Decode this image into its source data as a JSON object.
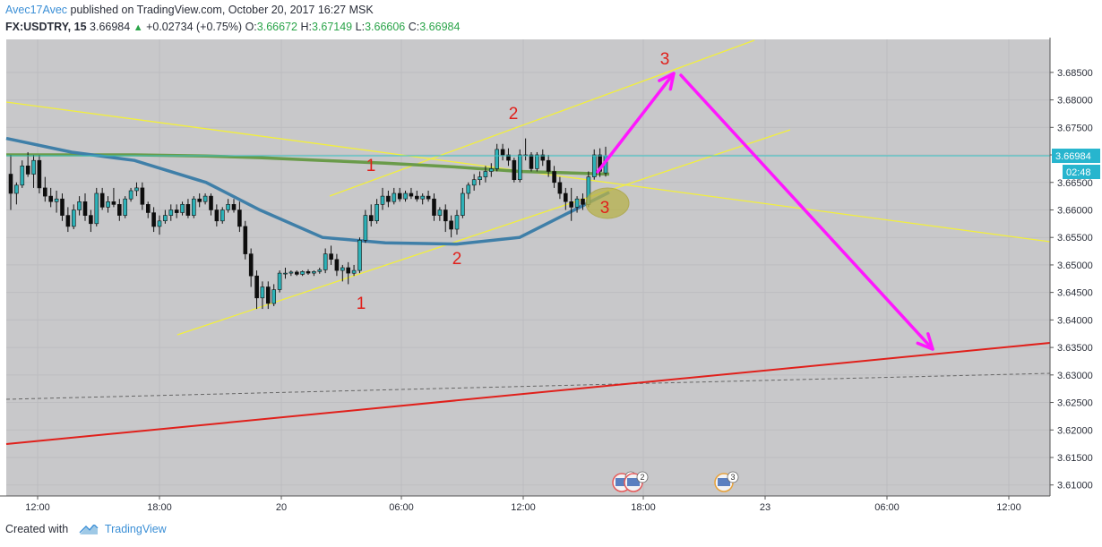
{
  "header": {
    "author": "Avec17Avec",
    "published_text": "published on TradingView.com, October 20, 2017 16:27 MSK",
    "symbol": "FX:USDTRY, 15",
    "last": "3.66984",
    "change": "+0.02734 (+0.75%)",
    "open_label": "O:",
    "open": "3.66672",
    "high_label": "H:",
    "high": "3.67149",
    "low_label": "L:",
    "low": "3.66606",
    "close_label": "C:",
    "close": "3.66984"
  },
  "footer": {
    "created_with": "Created with",
    "brand": "TradingView"
  },
  "colors": {
    "bg": "#c8c8ca",
    "candle_up": "#2db1b7",
    "candle_down": "#0d0d0d",
    "ema_green": "#6a9b4a",
    "ema_blue": "#3f7fa8",
    "trend_yellow": "#f2ef3d",
    "support_red": "#e0201b",
    "projection_magenta": "#ff17ff",
    "wave_labels": "#e0201b",
    "price_line": "#39c6c8",
    "price_label_bg": "#27b5ce"
  },
  "chart_data": {
    "type": "candlestick",
    "symbol": "FX:USDTRY",
    "timeframe": "15",
    "y_ticks": [
      "3.68500",
      "3.68000",
      "3.67500",
      "3.67000",
      "3.66500",
      "3.66000",
      "3.65500",
      "3.65000",
      "3.64500",
      "3.64000",
      "3.63500",
      "3.63000",
      "3.62500",
      "3.62000",
      "3.61500",
      "3.61000"
    ],
    "ylim": [
      3.608,
      3.691
    ],
    "x_ticks": [
      "12:00",
      "18:00",
      "20",
      "06:00",
      "12:00",
      "18:00",
      "23",
      "06:00",
      "12:00"
    ],
    "last_price": "3.66984",
    "countdown": "02:48",
    "candles": [
      {
        "o": 3.6665,
        "h": 3.67,
        "l": 3.66,
        "c": 3.663
      },
      {
        "o": 3.663,
        "h": 3.665,
        "l": 3.661,
        "c": 3.6645
      },
      {
        "o": 3.6645,
        "h": 3.669,
        "l": 3.664,
        "c": 3.668
      },
      {
        "o": 3.668,
        "h": 3.6705,
        "l": 3.666,
        "c": 3.6665
      },
      {
        "o": 3.6665,
        "h": 3.67,
        "l": 3.664,
        "c": 3.669
      },
      {
        "o": 3.669,
        "h": 3.67,
        "l": 3.663,
        "c": 3.664
      },
      {
        "o": 3.664,
        "h": 3.666,
        "l": 3.6615,
        "c": 3.6625
      },
      {
        "o": 3.6625,
        "h": 3.664,
        "l": 3.6605,
        "c": 3.6615
      },
      {
        "o": 3.6615,
        "h": 3.6635,
        "l": 3.6595,
        "c": 3.662
      },
      {
        "o": 3.662,
        "h": 3.663,
        "l": 3.658,
        "c": 3.659
      },
      {
        "o": 3.659,
        "h": 3.6605,
        "l": 3.656,
        "c": 3.657
      },
      {
        "o": 3.657,
        "h": 3.661,
        "l": 3.6565,
        "c": 3.66
      },
      {
        "o": 3.66,
        "h": 3.6625,
        "l": 3.659,
        "c": 3.6615
      },
      {
        "o": 3.6615,
        "h": 3.663,
        "l": 3.658,
        "c": 3.659
      },
      {
        "o": 3.659,
        "h": 3.66,
        "l": 3.656,
        "c": 3.6575
      },
      {
        "o": 3.6575,
        "h": 3.664,
        "l": 3.657,
        "c": 3.663
      },
      {
        "o": 3.663,
        "h": 3.664,
        "l": 3.66,
        "c": 3.6605
      },
      {
        "o": 3.6605,
        "h": 3.6625,
        "l": 3.6595,
        "c": 3.6615
      },
      {
        "o": 3.6615,
        "h": 3.664,
        "l": 3.6605,
        "c": 3.661
      },
      {
        "o": 3.661,
        "h": 3.662,
        "l": 3.658,
        "c": 3.659
      },
      {
        "o": 3.659,
        "h": 3.6625,
        "l": 3.6585,
        "c": 3.662
      },
      {
        "o": 3.662,
        "h": 3.664,
        "l": 3.6615,
        "c": 3.6635
      },
      {
        "o": 3.6635,
        "h": 3.665,
        "l": 3.6625,
        "c": 3.664
      },
      {
        "o": 3.664,
        "h": 3.665,
        "l": 3.66,
        "c": 3.661
      },
      {
        "o": 3.661,
        "h": 3.6615,
        "l": 3.6585,
        "c": 3.6595
      },
      {
        "o": 3.6595,
        "h": 3.6605,
        "l": 3.656,
        "c": 3.657
      },
      {
        "o": 3.657,
        "h": 3.659,
        "l": 3.6555,
        "c": 3.658
      },
      {
        "o": 3.658,
        "h": 3.66,
        "l": 3.6575,
        "c": 3.659
      },
      {
        "o": 3.659,
        "h": 3.661,
        "l": 3.658,
        "c": 3.66
      },
      {
        "o": 3.66,
        "h": 3.661,
        "l": 3.6585,
        "c": 3.6595
      },
      {
        "o": 3.6595,
        "h": 3.6615,
        "l": 3.659,
        "c": 3.661
      },
      {
        "o": 3.661,
        "h": 3.662,
        "l": 3.6585,
        "c": 3.659
      },
      {
        "o": 3.659,
        "h": 3.6625,
        "l": 3.6585,
        "c": 3.662
      },
      {
        "o": 3.662,
        "h": 3.663,
        "l": 3.6605,
        "c": 3.6615
      },
      {
        "o": 3.6615,
        "h": 3.663,
        "l": 3.661,
        "c": 3.6625
      },
      {
        "o": 3.6625,
        "h": 3.663,
        "l": 3.659,
        "c": 3.66
      },
      {
        "o": 3.66,
        "h": 3.661,
        "l": 3.657,
        "c": 3.658
      },
      {
        "o": 3.658,
        "h": 3.6605,
        "l": 3.6575,
        "c": 3.66
      },
      {
        "o": 3.66,
        "h": 3.662,
        "l": 3.6595,
        "c": 3.661
      },
      {
        "o": 3.661,
        "h": 3.662,
        "l": 3.6595,
        "c": 3.66
      },
      {
        "o": 3.66,
        "h": 3.6615,
        "l": 3.656,
        "c": 3.657
      },
      {
        "o": 3.657,
        "h": 3.658,
        "l": 3.651,
        "c": 3.652
      },
      {
        "o": 3.652,
        "h": 3.653,
        "l": 3.646,
        "c": 3.648
      },
      {
        "o": 3.648,
        "h": 3.649,
        "l": 3.642,
        "c": 3.644
      },
      {
        "o": 3.644,
        "h": 3.647,
        "l": 3.642,
        "c": 3.646
      },
      {
        "o": 3.646,
        "h": 3.647,
        "l": 3.642,
        "c": 3.643
      },
      {
        "o": 3.643,
        "h": 3.6465,
        "l": 3.6425,
        "c": 3.6455
      },
      {
        "o": 3.6455,
        "h": 3.649,
        "l": 3.645,
        "c": 3.6485
      },
      {
        "o": 3.6485,
        "h": 3.6495,
        "l": 3.6475,
        "c": 3.6485
      },
      {
        "o": 3.6485,
        "h": 3.649,
        "l": 3.648,
        "c": 3.6487
      },
      {
        "o": 3.6487,
        "h": 3.649,
        "l": 3.648,
        "c": 3.6483
      },
      {
        "o": 3.6483,
        "h": 3.649,
        "l": 3.648,
        "c": 3.6488
      },
      {
        "o": 3.6488,
        "h": 3.6492,
        "l": 3.6482,
        "c": 3.6485
      },
      {
        "o": 3.6485,
        "h": 3.649,
        "l": 3.648,
        "c": 3.6488
      },
      {
        "o": 3.6488,
        "h": 3.6495,
        "l": 3.6484,
        "c": 3.6491
      },
      {
        "o": 3.6491,
        "h": 3.653,
        "l": 3.6485,
        "c": 3.652
      },
      {
        "o": 3.652,
        "h": 3.6535,
        "l": 3.65,
        "c": 3.651
      },
      {
        "o": 3.651,
        "h": 3.652,
        "l": 3.648,
        "c": 3.649
      },
      {
        "o": 3.649,
        "h": 3.65,
        "l": 3.647,
        "c": 3.6495
      },
      {
        "o": 3.6495,
        "h": 3.6505,
        "l": 3.6465,
        "c": 3.6485
      },
      {
        "o": 3.6485,
        "h": 3.65,
        "l": 3.648,
        "c": 3.649
      },
      {
        "o": 3.649,
        "h": 3.655,
        "l": 3.6485,
        "c": 3.6545
      },
      {
        "o": 3.6545,
        "h": 3.66,
        "l": 3.654,
        "c": 3.659
      },
      {
        "o": 3.659,
        "h": 3.661,
        "l": 3.657,
        "c": 3.658
      },
      {
        "o": 3.658,
        "h": 3.662,
        "l": 3.6575,
        "c": 3.661
      },
      {
        "o": 3.661,
        "h": 3.664,
        "l": 3.66,
        "c": 3.6625
      },
      {
        "o": 3.6625,
        "h": 3.6635,
        "l": 3.6605,
        "c": 3.6615
      },
      {
        "o": 3.6615,
        "h": 3.664,
        "l": 3.661,
        "c": 3.663
      },
      {
        "o": 3.663,
        "h": 3.664,
        "l": 3.6615,
        "c": 3.662
      },
      {
        "o": 3.662,
        "h": 3.6635,
        "l": 3.6615,
        "c": 3.663
      },
      {
        "o": 3.663,
        "h": 3.664,
        "l": 3.662,
        "c": 3.6625
      },
      {
        "o": 3.6625,
        "h": 3.6635,
        "l": 3.6615,
        "c": 3.662
      },
      {
        "o": 3.662,
        "h": 3.663,
        "l": 3.661,
        "c": 3.6625
      },
      {
        "o": 3.6625,
        "h": 3.6635,
        "l": 3.6615,
        "c": 3.662
      },
      {
        "o": 3.662,
        "h": 3.663,
        "l": 3.658,
        "c": 3.659
      },
      {
        "o": 3.659,
        "h": 3.6605,
        "l": 3.658,
        "c": 3.66
      },
      {
        "o": 3.66,
        "h": 3.661,
        "l": 3.656,
        "c": 3.658
      },
      {
        "o": 3.658,
        "h": 3.659,
        "l": 3.655,
        "c": 3.6565
      },
      {
        "o": 3.6565,
        "h": 3.66,
        "l": 3.6555,
        "c": 3.659
      },
      {
        "o": 3.659,
        "h": 3.664,
        "l": 3.6585,
        "c": 3.663
      },
      {
        "o": 3.663,
        "h": 3.665,
        "l": 3.662,
        "c": 3.6645
      },
      {
        "o": 3.6645,
        "h": 3.6665,
        "l": 3.6635,
        "c": 3.6655
      },
      {
        "o": 3.6655,
        "h": 3.667,
        "l": 3.6645,
        "c": 3.666
      },
      {
        "o": 3.666,
        "h": 3.668,
        "l": 3.665,
        "c": 3.667
      },
      {
        "o": 3.667,
        "h": 3.6685,
        "l": 3.666,
        "c": 3.6675
      },
      {
        "o": 3.6675,
        "h": 3.672,
        "l": 3.667,
        "c": 3.671
      },
      {
        "o": 3.671,
        "h": 3.672,
        "l": 3.669,
        "c": 3.67
      },
      {
        "o": 3.67,
        "h": 3.6712,
        "l": 3.668,
        "c": 3.669
      },
      {
        "o": 3.669,
        "h": 3.6695,
        "l": 3.665,
        "c": 3.6655
      },
      {
        "o": 3.6655,
        "h": 3.671,
        "l": 3.665,
        "c": 3.67
      },
      {
        "o": 3.67,
        "h": 3.673,
        "l": 3.669,
        "c": 3.67
      },
      {
        "o": 3.67,
        "h": 3.6705,
        "l": 3.667,
        "c": 3.6675
      },
      {
        "o": 3.6675,
        "h": 3.6705,
        "l": 3.667,
        "c": 3.67
      },
      {
        "o": 3.67,
        "h": 3.671,
        "l": 3.668,
        "c": 3.669
      },
      {
        "o": 3.669,
        "h": 3.67,
        "l": 3.666,
        "c": 3.667
      },
      {
        "o": 3.667,
        "h": 3.668,
        "l": 3.664,
        "c": 3.665
      },
      {
        "o": 3.665,
        "h": 3.666,
        "l": 3.662,
        "c": 3.663
      },
      {
        "o": 3.663,
        "h": 3.664,
        "l": 3.66,
        "c": 3.6615
      },
      {
        "o": 3.6615,
        "h": 3.664,
        "l": 3.658,
        "c": 3.6605
      },
      {
        "o": 3.6605,
        "h": 3.6625,
        "l": 3.6595,
        "c": 3.662
      },
      {
        "o": 3.662,
        "h": 3.663,
        "l": 3.66,
        "c": 3.661
      },
      {
        "o": 3.661,
        "h": 3.667,
        "l": 3.6605,
        "c": 3.666
      },
      {
        "o": 3.666,
        "h": 3.671,
        "l": 3.6655,
        "c": 3.67
      },
      {
        "o": 3.67,
        "h": 3.6712,
        "l": 3.666,
        "c": 3.667
      },
      {
        "o": 3.66672,
        "h": 3.67149,
        "l": 3.66606,
        "c": 3.66984
      }
    ],
    "ema_green": [
      3.67,
      3.67,
      3.67,
      3.6698,
      3.6695,
      3.669,
      3.6685,
      3.6678,
      3.667,
      3.6665
    ],
    "ema_blue": [
      3.673,
      3.6705,
      3.669,
      3.665,
      3.66,
      3.655,
      3.654,
      3.6538,
      3.655,
      3.6632
    ],
    "annotations": {
      "wave_labels": [
        "1",
        "2",
        "3",
        "1",
        "2",
        "3"
      ],
      "event_badges": [
        "2",
        "2",
        "3"
      ]
    }
  }
}
